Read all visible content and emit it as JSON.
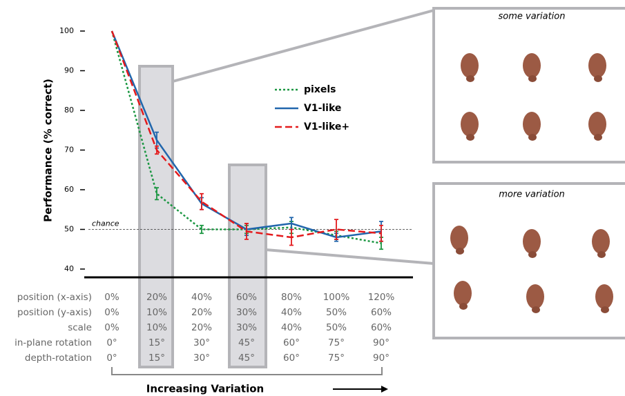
{
  "chart_data": {
    "type": "line",
    "y_label": "Performance (% correct)",
    "categories": [
      null,
      null,
      null,
      null,
      null,
      null,
      null
    ],
    "ylim": [
      40,
      100
    ],
    "yticks": [
      40,
      50,
      60,
      70,
      80,
      90,
      100
    ],
    "chance_line": {
      "value": 50,
      "label": "chance"
    },
    "series": [
      {
        "name": "pixels",
        "color": "#1a9641",
        "dash": "3,3",
        "values": [
          100,
          59,
          50,
          50,
          50.5,
          48.5,
          46.5
        ],
        "errors": [
          null,
          1.5,
          1,
          1,
          1.5,
          1,
          1.5
        ]
      },
      {
        "name": "V1-like",
        "color": "#2166ac",
        "dash": "none",
        "values": [
          100,
          72.5,
          56.5,
          50,
          51.5,
          48,
          49.5
        ],
        "errors": [
          null,
          2,
          1.5,
          1.5,
          1.5,
          1,
          2.5
        ]
      },
      {
        "name": "V1-like+",
        "color": "#e31a1c",
        "dash": "10,5",
        "values": [
          100,
          70,
          57,
          49.5,
          48,
          50,
          49
        ],
        "errors": [
          null,
          1,
          2,
          2,
          2,
          2.5,
          2
        ]
      }
    ]
  },
  "variation_table": {
    "rows": [
      {
        "label": "position (x-axis)",
        "cells": [
          "0%",
          "20%",
          "40%",
          "60%",
          "80%",
          "100%",
          "120%"
        ]
      },
      {
        "label": "position (y-axis)",
        "cells": [
          "0%",
          "10%",
          "20%",
          "30%",
          "40%",
          "50%",
          "60%"
        ]
      },
      {
        "label": "scale",
        "cells": [
          "0%",
          "10%",
          "20%",
          "30%",
          "40%",
          "50%",
          "60%"
        ]
      },
      {
        "label": "in-plane rotation",
        "cells": [
          "0°",
          "15°",
          "30°",
          "45°",
          "60°",
          "75°",
          "90°"
        ]
      },
      {
        "label": "depth-rotation",
        "cells": [
          "0°",
          "15°",
          "30°",
          "45°",
          "60°",
          "75°",
          "90°"
        ]
      }
    ],
    "caption": "Increasing Variation"
  },
  "panels": [
    {
      "title": "some variation"
    },
    {
      "title": "more variation"
    }
  ]
}
